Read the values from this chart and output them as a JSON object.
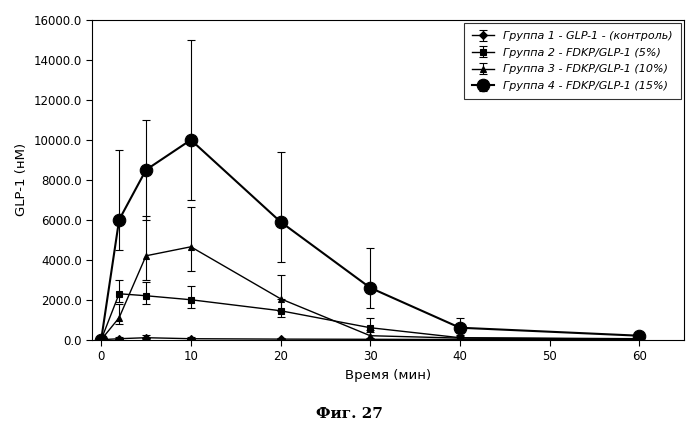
{
  "xlabel": "Время (мин)",
  "ylabel": "GLP-1 (нМ)",
  "caption": "Фиг. 27",
  "xlim": [
    -1,
    65
  ],
  "ylim": [
    0,
    16000
  ],
  "xticks": [
    0,
    10,
    20,
    30,
    40,
    50,
    60
  ],
  "yticks": [
    0.0,
    2000.0,
    4000.0,
    6000.0,
    8000.0,
    10000.0,
    12000.0,
    14000.0,
    16000.0
  ],
  "series": [
    {
      "label": "Группа 1 - GLP-1 - (контроль)",
      "x": [
        0,
        2,
        5,
        10,
        20,
        30,
        40,
        60
      ],
      "y": [
        0,
        50,
        100,
        50,
        30,
        20,
        10,
        5
      ],
      "yerr_low": [
        0,
        30,
        60,
        30,
        15,
        10,
        5,
        3
      ],
      "yerr_high": [
        0,
        70,
        120,
        70,
        40,
        25,
        15,
        7
      ],
      "marker": "D",
      "markersize": 4,
      "markerfacecolor": "black",
      "color": "#000000",
      "linewidth": 1.0
    },
    {
      "label": "Группа 2 - FDKP/GLP-1 (5%)",
      "x": [
        0,
        2,
        5,
        10,
        20,
        30,
        40,
        60
      ],
      "y": [
        0,
        2300,
        2200,
        2000,
        1450,
        600,
        100,
        50
      ],
      "yerr_low": [
        0,
        400,
        400,
        400,
        300,
        200,
        50,
        20
      ],
      "yerr_high": [
        0,
        700,
        700,
        700,
        600,
        500,
        150,
        60
      ],
      "marker": "s",
      "markersize": 5,
      "markerfacecolor": "black",
      "color": "#000000",
      "linewidth": 1.0
    },
    {
      "label": "Группа 3 - FDKP/GLP-1 (10%)",
      "x": [
        0,
        2,
        5,
        10,
        20,
        30,
        40,
        60
      ],
      "y": [
        0,
        1100,
        4200,
        4650,
        2050,
        200,
        80,
        30
      ],
      "yerr_low": [
        0,
        300,
        1200,
        1200,
        600,
        100,
        40,
        15
      ],
      "yerr_high": [
        0,
        700,
        2000,
        2000,
        1200,
        300,
        100,
        50
      ],
      "marker": "^",
      "markersize": 5,
      "markerfacecolor": "black",
      "color": "#000000",
      "linewidth": 1.0
    },
    {
      "label": "Группа 4 - FDKP/GLP-1 (15%)",
      "x": [
        0,
        2,
        5,
        10,
        20,
        30,
        40,
        60
      ],
      "y": [
        0,
        6000,
        8500,
        10000,
        5900,
        2600,
        600,
        200
      ],
      "yerr_low": [
        0,
        1500,
        2500,
        3000,
        2000,
        1000,
        200,
        80
      ],
      "yerr_high": [
        0,
        3500,
        2500,
        5000,
        3500,
        2000,
        500,
        150
      ],
      "marker": "o",
      "markersize": 9,
      "markerfacecolor": "black",
      "color": "#000000",
      "linewidth": 1.5
    }
  ]
}
